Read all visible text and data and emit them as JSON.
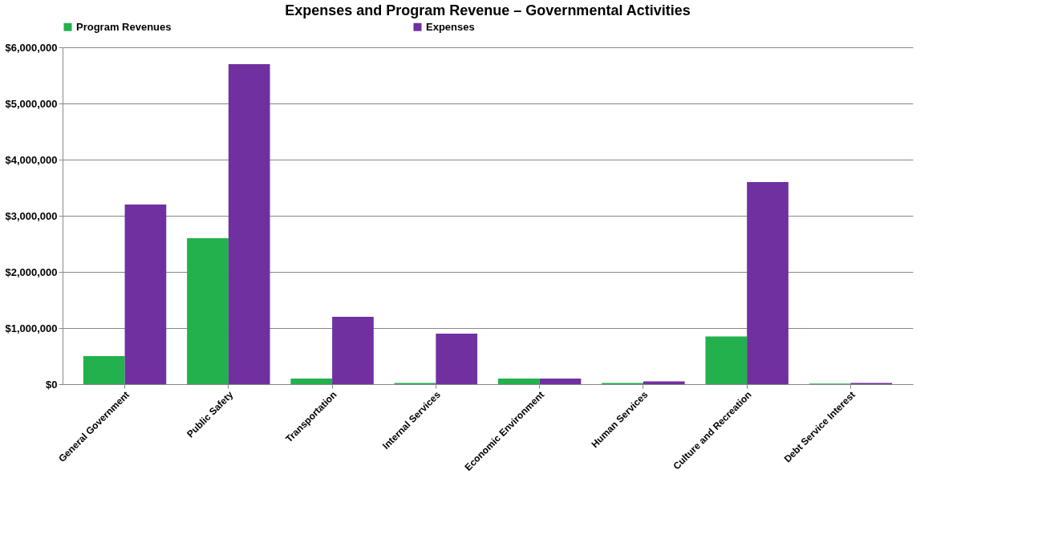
{
  "chart_data": {
    "type": "bar",
    "title": "Expenses and Program Revenue – Governmental Activities",
    "categories": [
      "General Government",
      "Public Safety",
      "Transportation",
      "Internal Services",
      "Economic Environment",
      "Human Services",
      "Culture and Recreation",
      "Debt Service Interest"
    ],
    "series": [
      {
        "name": "Program Revenues",
        "color": "#22b14c",
        "values": [
          500000,
          2600000,
          100000,
          20000,
          100000,
          20000,
          850000,
          10000
        ]
      },
      {
        "name": "Expenses",
        "color": "#7030a0",
        "values": [
          3200000,
          5700000,
          1200000,
          900000,
          100000,
          50000,
          3600000,
          20000
        ]
      }
    ],
    "ylim": [
      0,
      6000000
    ],
    "yticks": [
      {
        "value": 0,
        "label": "$0"
      },
      {
        "value": 1000000,
        "label": "$1,000,000"
      },
      {
        "value": 2000000,
        "label": "$2,000,000"
      },
      {
        "value": 3000000,
        "label": "$3,000,000"
      },
      {
        "value": 4000000,
        "label": "$4,000,000"
      },
      {
        "value": 5000000,
        "label": "$5,000,000"
      },
      {
        "value": 6000000,
        "label": "$6,000,000"
      }
    ],
    "grid": "y",
    "legend": "top"
  }
}
